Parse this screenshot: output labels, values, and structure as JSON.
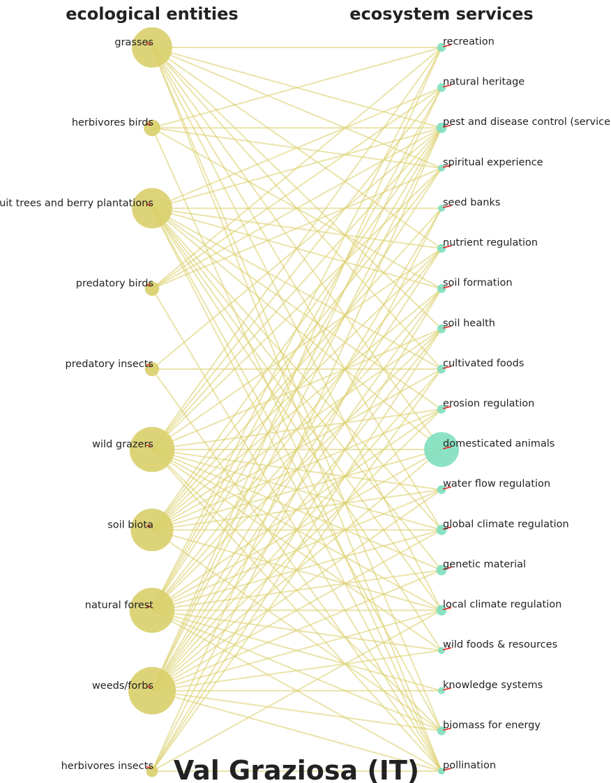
{
  "graph": {
    "title": "Val Graziosa (IT)",
    "left_heading": "ecological entities",
    "right_heading": "ecosystem services",
    "colors": {
      "entity_node": "#d9cf6a",
      "service_node": "#7fdfbf",
      "edge": "#dcd070",
      "marker": "#e02020"
    },
    "entities": [
      {
        "label": "grasses",
        "size": 0.85
      },
      {
        "label": "herbivores birds",
        "size": 0.35
      },
      {
        "label": "fruit trees and berry plantations",
        "size": 0.85
      },
      {
        "label": "predatory birds",
        "size": 0.3
      },
      {
        "label": "predatory insects",
        "size": 0.3
      },
      {
        "label": "wild grazers",
        "size": 0.95
      },
      {
        "label": "soil biota",
        "size": 0.9
      },
      {
        "label": "natural forest",
        "size": 0.95
      },
      {
        "label": "weeds/forbs",
        "size": 1.0
      },
      {
        "label": "herbivores insects",
        "size": 0.25
      }
    ],
    "services": [
      {
        "label": "recreation",
        "size": 0.25
      },
      {
        "label": "natural heritage",
        "size": 0.25
      },
      {
        "label": "pest and disease control (service)",
        "size": 0.3
      },
      {
        "label": "spiritual experience",
        "size": 0.2
      },
      {
        "label": "seed banks",
        "size": 0.2
      },
      {
        "label": "nutrient regulation",
        "size": 0.25
      },
      {
        "label": "soil formation",
        "size": 0.25
      },
      {
        "label": "soil health",
        "size": 0.25
      },
      {
        "label": "cultivated foods",
        "size": 0.25
      },
      {
        "label": "erosion regulation",
        "size": 0.25
      },
      {
        "label": "domesticated animals",
        "size": 1.0
      },
      {
        "label": "water flow regulation",
        "size": 0.25
      },
      {
        "label": "global climate regulation",
        "size": 0.3
      },
      {
        "label": "genetic material",
        "size": 0.3
      },
      {
        "label": "local climate regulation",
        "size": 0.3
      },
      {
        "label": "wild foods & resources",
        "size": 0.15
      },
      {
        "label": "knowledge systems",
        "size": 0.1
      },
      {
        "label": "biomass for energy",
        "size": 0.25
      },
      {
        "label": "pollination",
        "size": 0.15
      }
    ],
    "edges": [
      [
        0,
        0
      ],
      [
        0,
        2
      ],
      [
        0,
        3
      ],
      [
        0,
        5
      ],
      [
        0,
        7
      ],
      [
        0,
        8
      ],
      [
        0,
        10
      ],
      [
        0,
        12
      ],
      [
        0,
        14
      ],
      [
        0,
        17
      ],
      [
        0,
        18
      ],
      [
        1,
        0
      ],
      [
        1,
        2
      ],
      [
        1,
        3
      ],
      [
        1,
        6
      ],
      [
        1,
        18
      ],
      [
        2,
        1
      ],
      [
        2,
        2
      ],
      [
        2,
        4
      ],
      [
        2,
        5
      ],
      [
        2,
        6
      ],
      [
        2,
        8
      ],
      [
        2,
        9
      ],
      [
        2,
        10
      ],
      [
        2,
        12
      ],
      [
        2,
        13
      ],
      [
        2,
        14
      ],
      [
        2,
        15
      ],
      [
        2,
        17
      ],
      [
        2,
        18
      ],
      [
        3,
        0
      ],
      [
        3,
        1
      ],
      [
        3,
        2
      ],
      [
        3,
        3
      ],
      [
        3,
        18
      ],
      [
        4,
        2
      ],
      [
        4,
        8
      ],
      [
        4,
        18
      ],
      [
        5,
        0
      ],
      [
        5,
        1
      ],
      [
        5,
        2
      ],
      [
        5,
        3
      ],
      [
        5,
        5
      ],
      [
        5,
        7
      ],
      [
        5,
        9
      ],
      [
        5,
        10
      ],
      [
        5,
        11
      ],
      [
        5,
        12
      ],
      [
        5,
        13
      ],
      [
        5,
        14
      ],
      [
        5,
        15
      ],
      [
        5,
        17
      ],
      [
        5,
        18
      ],
      [
        6,
        2
      ],
      [
        6,
        3
      ],
      [
        6,
        4
      ],
      [
        6,
        5
      ],
      [
        6,
        6
      ],
      [
        6,
        7
      ],
      [
        6,
        8
      ],
      [
        6,
        9
      ],
      [
        6,
        10
      ],
      [
        6,
        11
      ],
      [
        6,
        12
      ],
      [
        6,
        14
      ],
      [
        6,
        17
      ],
      [
        7,
        0
      ],
      [
        7,
        1
      ],
      [
        7,
        2
      ],
      [
        7,
        3
      ],
      [
        7,
        5
      ],
      [
        7,
        6
      ],
      [
        7,
        7
      ],
      [
        7,
        9
      ],
      [
        7,
        10
      ],
      [
        7,
        11
      ],
      [
        7,
        12
      ],
      [
        7,
        13
      ],
      [
        7,
        14
      ],
      [
        7,
        15
      ],
      [
        7,
        16
      ],
      [
        7,
        17
      ],
      [
        7,
        18
      ],
      [
        8,
        0
      ],
      [
        8,
        1
      ],
      [
        8,
        2
      ],
      [
        8,
        4
      ],
      [
        8,
        5
      ],
      [
        8,
        6
      ],
      [
        8,
        7
      ],
      [
        8,
        8
      ],
      [
        8,
        9
      ],
      [
        8,
        10
      ],
      [
        8,
        11
      ],
      [
        8,
        12
      ],
      [
        8,
        13
      ],
      [
        8,
        14
      ],
      [
        8,
        15
      ],
      [
        8,
        16
      ],
      [
        8,
        17
      ],
      [
        8,
        18
      ],
      [
        9,
        2
      ],
      [
        9,
        4
      ],
      [
        9,
        6
      ],
      [
        9,
        7
      ],
      [
        9,
        8
      ],
      [
        9,
        14
      ],
      [
        9,
        18
      ]
    ]
  }
}
